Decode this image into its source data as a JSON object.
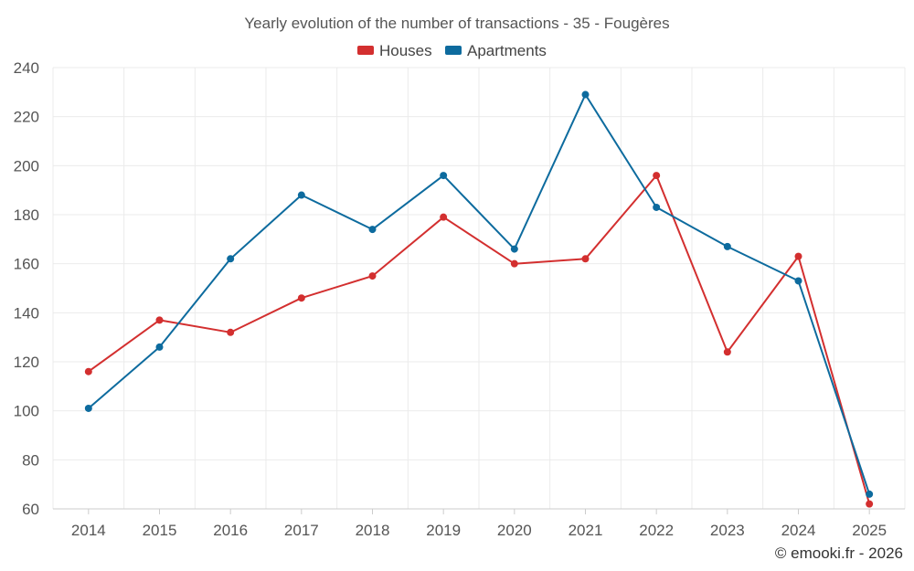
{
  "chart_data": {
    "type": "line",
    "title": "Yearly evolution of the number of transactions - 35 - Fougères",
    "xlabel": "",
    "ylabel": "",
    "categories": [
      "2014",
      "2015",
      "2016",
      "2017",
      "2018",
      "2019",
      "2020",
      "2021",
      "2022",
      "2023",
      "2024",
      "2025"
    ],
    "ylim": [
      60,
      240
    ],
    "yticks": [
      "60",
      "80",
      "100",
      "120",
      "140",
      "160",
      "180",
      "200",
      "220",
      "240"
    ],
    "grid": true,
    "legend_position": "top-center",
    "series": [
      {
        "name": "Houses",
        "color": "#d32f2f",
        "values": [
          116,
          137,
          132,
          146,
          155,
          179,
          160,
          162,
          196,
          124,
          163,
          62
        ]
      },
      {
        "name": "Apartments",
        "color": "#0d6b9e",
        "values": [
          101,
          126,
          162,
          188,
          174,
          196,
          166,
          229,
          183,
          167,
          153,
          66
        ]
      }
    ],
    "credit": "© emooki.fr - 2026"
  }
}
